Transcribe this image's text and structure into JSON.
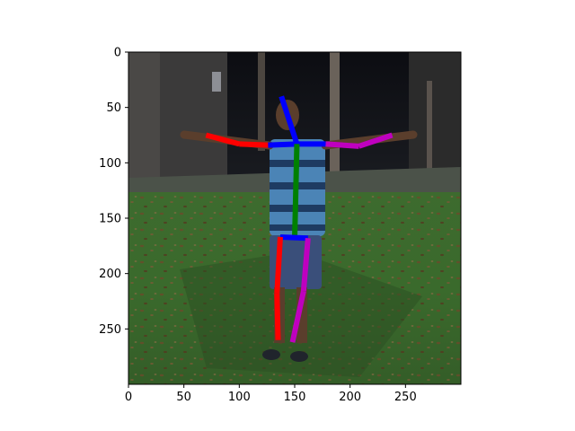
{
  "chart_data": {
    "type": "image-with-pose-overlay",
    "title": "",
    "xlabel": "",
    "ylabel": "",
    "xlim": [
      0,
      300
    ],
    "ylim": [
      300,
      0
    ],
    "x_ticks": [
      0,
      50,
      100,
      150,
      200,
      250
    ],
    "y_ticks": [
      0,
      50,
      100,
      150,
      200,
      250
    ],
    "grid": false,
    "keypoints": {
      "head_top": [
        138,
        40
      ],
      "neck": [
        152,
        83
      ],
      "r_shoulder": [
        126,
        84
      ],
      "r_elbow": [
        100,
        83
      ],
      "r_wrist": [
        70,
        75
      ],
      "l_shoulder": [
        178,
        83
      ],
      "l_elbow": [
        208,
        85
      ],
      "l_wrist": [
        238,
        75
      ],
      "pelvis": [
        150,
        168
      ],
      "r_hip": [
        137,
        167
      ],
      "r_knee": [
        134,
        218
      ],
      "r_ankle": [
        135,
        260
      ],
      "l_hip": [
        162,
        168
      ],
      "l_knee": [
        158,
        216
      ],
      "l_ankle": [
        148,
        262
      ]
    },
    "limbs": [
      {
        "from": "r_wrist",
        "to": "r_elbow",
        "color": "#ff0000"
      },
      {
        "from": "r_elbow",
        "to": "r_shoulder",
        "color": "#ff0000"
      },
      {
        "from": "r_shoulder",
        "to": "neck",
        "color": "#0000ff"
      },
      {
        "from": "neck",
        "to": "l_shoulder",
        "color": "#0000ff"
      },
      {
        "from": "l_shoulder",
        "to": "l_elbow",
        "color": "#bf00bf"
      },
      {
        "from": "l_elbow",
        "to": "l_wrist",
        "color": "#bf00bf"
      },
      {
        "from": "head_top",
        "to": "neck",
        "color": "#0000ff"
      },
      {
        "from": "neck",
        "to": "pelvis",
        "color": "#008000"
      },
      {
        "from": "r_hip",
        "to": "l_hip",
        "color": "#0000ff"
      },
      {
        "from": "r_hip",
        "to": "r_knee",
        "color": "#ff0000"
      },
      {
        "from": "r_knee",
        "to": "r_ankle",
        "color": "#ff0000"
      },
      {
        "from": "l_hip",
        "to": "l_knee",
        "color": "#bf00bf"
      },
      {
        "from": "l_knee",
        "to": "l_ankle",
        "color": "#bf00bf"
      }
    ]
  }
}
